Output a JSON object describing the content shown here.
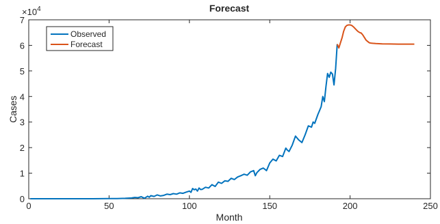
{
  "chart_data": {
    "type": "line",
    "title": "Forecast",
    "xlabel": "Month",
    "ylabel": "Cases",
    "y_exponent_label": "×10",
    "y_exponent_power": "4",
    "y_multiplier": 10000,
    "xlim": [
      0,
      250
    ],
    "ylim": [
      0,
      70000
    ],
    "x_ticks": [
      0,
      50,
      100,
      150,
      200,
      250
    ],
    "x_tick_labels": [
      "0",
      "50",
      "100",
      "150",
      "200",
      "250"
    ],
    "y_ticks": [
      0,
      10000,
      20000,
      30000,
      40000,
      50000,
      60000,
      70000
    ],
    "y_tick_labels": [
      "0",
      "1",
      "2",
      "3",
      "4",
      "5",
      "6",
      "7"
    ],
    "grid": false,
    "legend": "top-left",
    "series": [
      {
        "name": "Observed",
        "color": "#0072BD",
        "x": [
          1,
          10,
          20,
          30,
          40,
          50,
          55,
          60,
          64,
          66,
          68,
          70,
          72,
          74,
          75,
          76,
          78,
          80,
          82,
          84,
          86,
          88,
          90,
          92,
          94,
          96,
          98,
          100,
          101,
          102,
          103,
          104,
          105,
          106,
          107,
          108,
          110,
          112,
          114,
          116,
          118,
          120,
          122,
          124,
          126,
          128,
          130,
          132,
          134,
          136,
          138,
          140,
          141,
          142,
          144,
          146,
          148,
          150,
          152,
          154,
          156,
          158,
          160,
          161,
          162,
          164,
          166,
          168,
          170,
          172,
          174,
          176,
          177,
          178,
          180,
          181,
          182,
          183,
          184,
          185,
          186,
          187,
          188,
          189,
          190,
          191,
          192
        ],
        "y": [
          0,
          0,
          0,
          0,
          0,
          50,
          80,
          150,
          300,
          500,
          400,
          800,
          200,
          1000,
          600,
          1200,
          900,
          1500,
          1100,
          1300,
          1800,
          1600,
          2000,
          1800,
          2300,
          2100,
          2600,
          3000,
          2500,
          4000,
          3500,
          3800,
          3000,
          4200,
          3600,
          3700,
          4500,
          4200,
          5500,
          4800,
          6500,
          6000,
          7000,
          6800,
          8000,
          7500,
          8500,
          9000,
          9600,
          9200,
          10500,
          11000,
          9000,
          10200,
          11500,
          12000,
          11000,
          14000,
          15500,
          14800,
          17000,
          16500,
          19800,
          19000,
          18500,
          21000,
          24500,
          23000,
          22000,
          25000,
          28500,
          28000,
          30000,
          29500,
          33000,
          34500,
          36000,
          40000,
          38000,
          44000,
          49000,
          47500,
          49500,
          48800,
          44500,
          51000,
          60500
        ]
      },
      {
        "name": "Forecast",
        "color": "#D95319",
        "x": [
          192,
          193,
          194,
          195,
          196,
          197,
          198,
          199,
          200,
          201,
          202,
          203,
          204,
          205,
          206,
          207,
          208,
          209,
          210,
          211,
          212,
          213,
          214,
          216,
          218,
          220,
          225,
          230,
          235,
          240
        ],
        "y": [
          60500,
          59000,
          61000,
          63000,
          65500,
          67200,
          67800,
          68000,
          68000,
          67800,
          67300,
          66700,
          66000,
          65400,
          65000,
          64800,
          64000,
          63000,
          62000,
          61500,
          61000,
          60900,
          60800,
          60700,
          60650,
          60600,
          60550,
          60500,
          60500,
          60500
        ]
      }
    ]
  }
}
